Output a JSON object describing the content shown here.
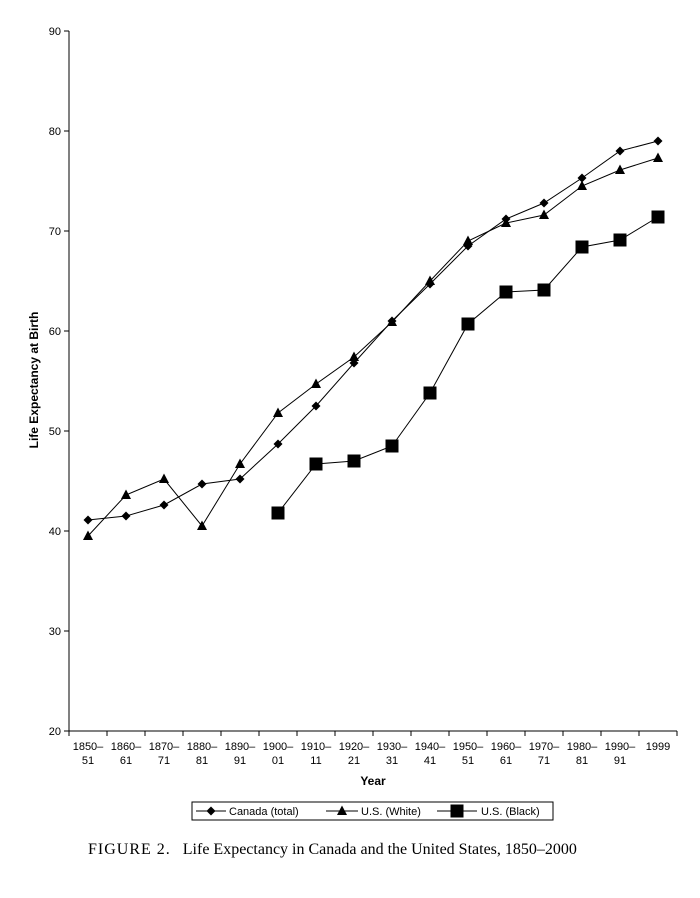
{
  "chart_data": {
    "type": "line",
    "xlabel": "Year",
    "ylabel": "Life Expectancy at Birth",
    "ylim": [
      20,
      90
    ],
    "yticks": [
      20,
      30,
      40,
      50,
      60,
      70,
      80,
      90
    ],
    "categories": [
      {
        "line1": "1850–",
        "line2": "51"
      },
      {
        "line1": "1860–",
        "line2": "61"
      },
      {
        "line1": "1870–",
        "line2": "71"
      },
      {
        "line1": "1880–",
        "line2": "81"
      },
      {
        "line1": "1890–",
        "line2": "91"
      },
      {
        "line1": "1900–",
        "line2": "01"
      },
      {
        "line1": "1910–",
        "line2": "11"
      },
      {
        "line1": "1920–",
        "line2": "21"
      },
      {
        "line1": "1930–",
        "line2": "31"
      },
      {
        "line1": "1940–",
        "line2": "41"
      },
      {
        "line1": "1950–",
        "line2": "51"
      },
      {
        "line1": "1960–",
        "line2": "61"
      },
      {
        "line1": "1970–",
        "line2": "71"
      },
      {
        "line1": "1980–",
        "line2": "81"
      },
      {
        "line1": "1990–",
        "line2": "91"
      },
      {
        "line1": "1999",
        "line2": ""
      }
    ],
    "series": [
      {
        "name": "Canada (total)",
        "marker": "diamond",
        "values": [
          41.1,
          41.5,
          42.6,
          44.7,
          45.2,
          48.7,
          52.5,
          56.8,
          61.0,
          64.7,
          68.5,
          71.2,
          72.8,
          75.3,
          78.0,
          79.0
        ]
      },
      {
        "name": "U.S. (White)",
        "marker": "triangle",
        "values": [
          39.5,
          43.6,
          45.2,
          40.5,
          46.7,
          51.8,
          54.7,
          57.4,
          60.9,
          65.0,
          69.0,
          70.8,
          71.6,
          74.5,
          76.1,
          77.3
        ]
      },
      {
        "name": "U.S. (Black)",
        "marker": "square",
        "values": [
          null,
          null,
          null,
          null,
          null,
          41.8,
          46.7,
          47.0,
          48.5,
          53.8,
          60.7,
          63.9,
          64.1,
          68.4,
          69.1,
          71.4
        ]
      }
    ],
    "legend_position": "bottom",
    "grid": false
  },
  "caption": {
    "label": "FIGURE 2.",
    "text": "Life Expectancy in Canada and the United States, 1850–2000"
  },
  "colors": {
    "line": "#000000",
    "background": "#ffffff"
  }
}
